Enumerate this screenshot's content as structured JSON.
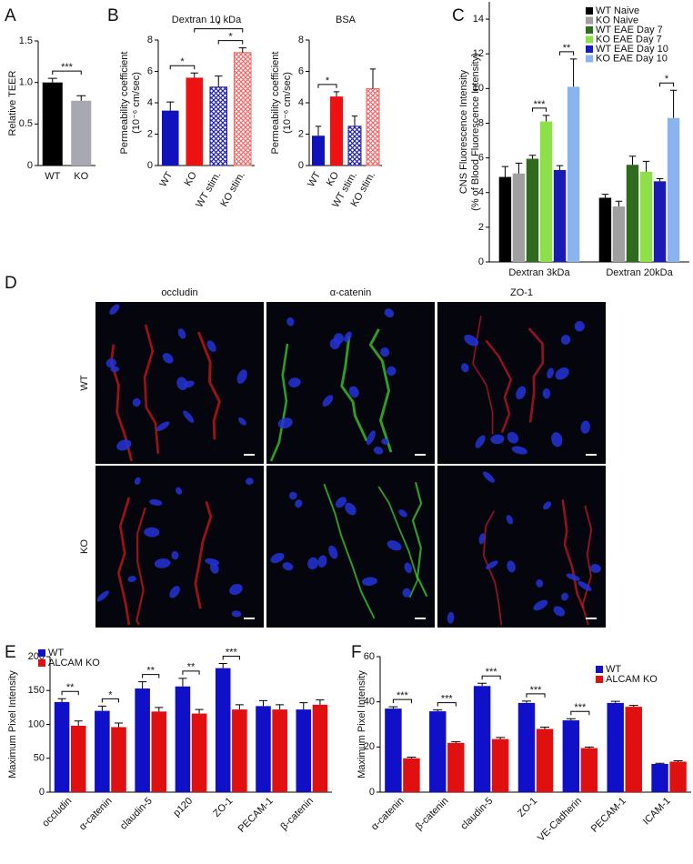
{
  "chart_data": [
    {
      "panel": "A",
      "type": "bar",
      "ylabel": [
        "Relative TEER"
      ],
      "categories": [
        "WT",
        "KO"
      ],
      "values": [
        1.0,
        0.78
      ],
      "errors": [
        0.05,
        0.06
      ],
      "colors": [
        "#000000",
        "#a8a8b2"
      ],
      "hatched": [
        false,
        false
      ],
      "ylim": [
        0,
        1.5
      ],
      "yticks": [
        0,
        0.5,
        {
          "value": 1,
          "label": "1.0"
        },
        1.5
      ],
      "annotations": [
        {
          "label": "***",
          "between": [
            0,
            1
          ]
        }
      ]
    },
    {
      "panel": "B",
      "type": "bar",
      "title": "Dextran 10 kDa",
      "ylabel": [
        "Permeability coefficient",
        "(10⁻⁶ cm/sec)"
      ],
      "categories": [
        "WT",
        "KO",
        "WT stim.",
        "KO stim."
      ],
      "values": [
        3.5,
        5.6,
        5.0,
        7.2
      ],
      "errors": [
        0.55,
        0.3,
        0.7,
        0.3
      ],
      "colors": [
        "#1212bb",
        "#ee1111",
        "#2222aa",
        "#f06a6a"
      ],
      "hatched": [
        false,
        false,
        true,
        true
      ],
      "ylim": [
        0,
        8
      ],
      "yticks": [
        0,
        2,
        4,
        6,
        8
      ],
      "annotations": [
        {
          "label": "*",
          "between": [
            0,
            1
          ]
        },
        {
          "label": "*",
          "between": [
            2,
            3
          ]
        },
        {
          "label": "*",
          "between": [
            1,
            3
          ]
        }
      ]
    },
    {
      "type": "bar",
      "title": "BSA",
      "ylabel": [
        "Permeability coefficient",
        "(10⁻⁶ cm/sec)"
      ],
      "categories": [
        "WT",
        "KO",
        "WT stim.",
        "KO stim."
      ],
      "values": [
        1.9,
        4.4,
        2.5,
        4.9
      ],
      "errors": [
        0.6,
        0.3,
        0.65,
        1.25
      ],
      "colors": [
        "#1212bb",
        "#ee1111",
        "#2222aa",
        "#f06a6a"
      ],
      "hatched": [
        false,
        false,
        true,
        true
      ],
      "ylim": [
        0,
        8
      ],
      "yticks": [
        0,
        2,
        4,
        6,
        8
      ],
      "annotations": [
        {
          "label": "*",
          "between": [
            0,
            1
          ]
        }
      ]
    },
    {
      "panel": "C",
      "type": "grouped_bar",
      "ylabel": [
        "CNS Fluorescence Intensity",
        "(% of Blood Fluorescence Intensity)"
      ],
      "categories": [
        "Dextran 3kDa",
        "Dextran 20kDa"
      ],
      "legend": "upper right",
      "series": [
        {
          "name": "WT Naive",
          "color": "#000000",
          "values": [
            4.9,
            3.7
          ],
          "errors": [
            0.6,
            0.2
          ]
        },
        {
          "name": "KO Naive",
          "color": "#a0a0a0",
          "values": [
            5.1,
            3.2
          ],
          "errors": [
            0.6,
            0.3
          ]
        },
        {
          "name": "WT EAE Day 7",
          "color": "#2f6a1f",
          "values": [
            5.95,
            5.6
          ],
          "errors": [
            0.2,
            0.5
          ]
        },
        {
          "name": "KO EAE Day 7",
          "color": "#8ee048",
          "values": [
            8.1,
            5.2
          ],
          "errors": [
            0.35,
            0.6
          ]
        },
        {
          "name": "WT EAE Day 10",
          "color": "#1a1ab4",
          "values": [
            5.3,
            4.65
          ],
          "errors": [
            0.25,
            0.15
          ]
        },
        {
          "name": "KO EAE Day 10",
          "color": "#8ab4f0",
          "values": [
            10.1,
            8.3
          ],
          "errors": [
            1.6,
            1.6
          ]
        }
      ],
      "ylim": [
        0,
        15
      ],
      "yticks": [
        0,
        2,
        4,
        6,
        8,
        10,
        12,
        14
      ],
      "annotations": [
        {
          "label": "***",
          "category": 0,
          "between": [
            2,
            3
          ]
        },
        {
          "label": "**",
          "category": 0,
          "between": [
            4,
            5
          ]
        },
        {
          "label": "*",
          "category": 1,
          "between": [
            4,
            5
          ]
        }
      ]
    },
    {
      "panel": "E",
      "type": "grouped_bar",
      "ylabel": [
        "Maximum Pixel Intensity"
      ],
      "categories": [
        "occludin",
        "α-catenin",
        "claudin-5",
        "p120",
        "ZO-1",
        "PECAM-1",
        "β-catenin"
      ],
      "legend": "upper left",
      "series": [
        {
          "name": "WT",
          "color": "#1010c8",
          "values": [
            133,
            120,
            153,
            156,
            183,
            127,
            122
          ],
          "errors": [
            5,
            7,
            10,
            12,
            7,
            8,
            10
          ]
        },
        {
          "name": "ALCAM KO",
          "color": "#e01010",
          "values": [
            98,
            96,
            119,
            116,
            122,
            122,
            129
          ],
          "errors": [
            7,
            6,
            6,
            6,
            7,
            7,
            7
          ]
        }
      ],
      "ylim": [
        0,
        200
      ],
      "yticks": [
        0,
        50,
        100,
        150,
        200
      ],
      "annotations": [
        {
          "label": "**",
          "category": 0,
          "between": [
            0,
            1
          ]
        },
        {
          "label": "*",
          "category": 1,
          "between": [
            0,
            1
          ]
        },
        {
          "label": "**",
          "category": 2,
          "between": [
            0,
            1
          ]
        },
        {
          "label": "**",
          "category": 3,
          "between": [
            0,
            1
          ]
        },
        {
          "label": "***",
          "category": 4,
          "between": [
            0,
            1
          ]
        }
      ]
    },
    {
      "panel": "F",
      "type": "grouped_bar",
      "ylabel": [
        "Maximum Pixel Intensity"
      ],
      "categories": [
        "α-catenin",
        "β-catenin",
        "claudin-5",
        "ZO-1",
        "VE-Cadherin",
        "PECAM-1",
        "ICAM-1"
      ],
      "legend": "upper right",
      "series": [
        {
          "name": "WT",
          "color": "#1010c8",
          "values": [
            37,
            35.8,
            47,
            39.5,
            31.8,
            39.5,
            12.5
          ],
          "errors": [
            0.8,
            0.6,
            1.2,
            0.8,
            0.7,
            0.7,
            0.3
          ]
        },
        {
          "name": "ALCAM KO",
          "color": "#e01010",
          "values": [
            15,
            21.8,
            23.5,
            28,
            19.5,
            37.8,
            13.5
          ],
          "errors": [
            0.5,
            0.5,
            0.7,
            0.8,
            0.5,
            0.6,
            0.4
          ]
        }
      ],
      "ylim": [
        0,
        60
      ],
      "yticks": [
        0,
        20,
        40,
        60
      ],
      "annotations": [
        {
          "label": "***",
          "category": 0,
          "between": [
            0,
            1
          ]
        },
        {
          "label": "***",
          "category": 1,
          "between": [
            0,
            1
          ]
        },
        {
          "label": "***",
          "category": 2,
          "between": [
            0,
            1
          ]
        },
        {
          "label": "***",
          "category": 3,
          "between": [
            0,
            1
          ]
        },
        {
          "label": "***",
          "category": 4,
          "between": [
            0,
            1
          ]
        }
      ]
    }
  ],
  "panel_d": {
    "panel": "D",
    "columns": [
      "occludin",
      "α-catenin",
      "ZO-1"
    ],
    "rows": [
      "WT",
      "KO"
    ]
  }
}
